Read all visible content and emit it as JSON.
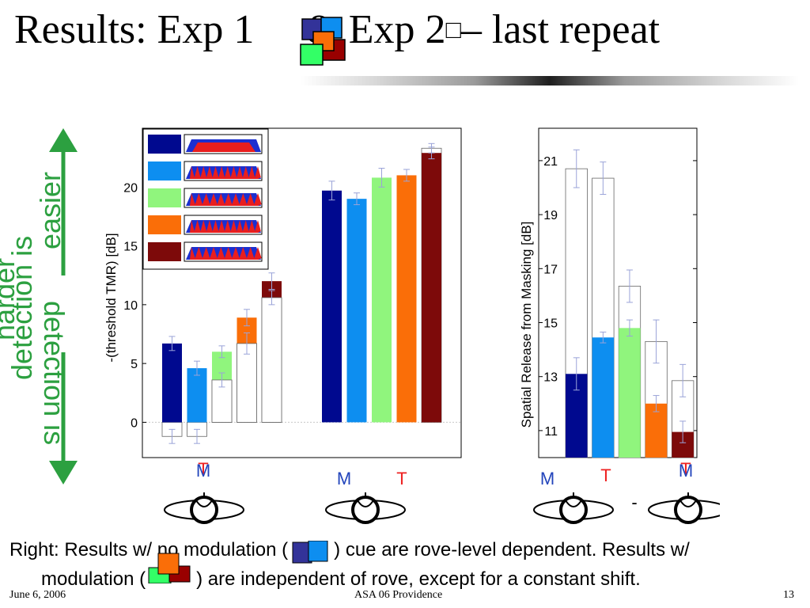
{
  "slide": {
    "title_part1": "Results: Exp 1",
    "title_part2": "& Exp 2",
    "title_glyph": "□",
    "title_part3": "– last repeat",
    "side_label_top": "detection is easier",
    "side_label_top_line1": "detection is",
    "side_label_top_line2": "easier",
    "side_label_bottom": "detection is harder",
    "side_label_bottom_line1": "detection is",
    "side_label_bottom_line2": "harder",
    "bottom_line1_a": "Right: Results w/ no modulation (",
    "bottom_line1_b": ") cue are rove-level dependent. Results w/",
    "bottom_line2_a": "modulation (",
    "bottom_line2_b": ") are independent of rove, except for a constant shift.",
    "footer_date": "June 6, 2006",
    "footer_center": "ASA 06 Providence",
    "footer_page": "13",
    "labels_M": "M",
    "labels_T": "T",
    "minus": "-",
    "colors": {
      "darkblue": "#00098f",
      "lightblue": "#0d8ef0",
      "lightgreen": "#90f57d",
      "orange": "#fa6e08",
      "darkred": "#7d0a0a",
      "red_label": "#ee2222",
      "blue_label": "#2244bb",
      "green_arrow": "#2ca040"
    }
  },
  "chart_data": [
    {
      "type": "bar",
      "ylabel": "-(threshold TMR) [dB]",
      "yticks": [
        0,
        5,
        10,
        15,
        20
      ],
      "ylim": [
        -3,
        25
      ],
      "legend_placement": "top-left",
      "groups": [
        {
          "label_M": "M",
          "label_T": "T",
          "bars": [
            {
              "color": "darkblue",
              "value": 6.7,
              "err": 0.6,
              "outline": -1.2,
              "outline_err": 0.6
            },
            {
              "color": "lightblue",
              "value": 4.6,
              "err": 0.6,
              "outline": -1.2,
              "outline_err": 0.6
            },
            {
              "color": "lightgreen",
              "value": 6.0,
              "err": 0.5,
              "outline": 3.6,
              "outline_err": 0.6
            },
            {
              "color": "orange",
              "value": 8.9,
              "err": 0.7,
              "outline": 6.7,
              "outline_err": 0.9
            },
            {
              "color": "darkred",
              "value": 12.0,
              "err": 0.7,
              "outline": 10.6,
              "outline_err": 0.6
            }
          ]
        },
        {
          "label_M": "M",
          "label_T": "T",
          "bars": [
            {
              "color": "darkblue",
              "value": 19.7,
              "err": 0.8
            },
            {
              "color": "lightblue",
              "value": 19.0,
              "err": 0.5
            },
            {
              "color": "lightgreen",
              "value": 20.8,
              "err": 0.8
            },
            {
              "color": "orange",
              "value": 21.0,
              "err": 0.5
            },
            {
              "color": "darkred",
              "value": 22.9,
              "err": 0.5,
              "outline": 23.3,
              "outline_err": 0.4
            }
          ]
        }
      ]
    },
    {
      "type": "bar",
      "ylabel": "Spatial Release from Masking [dB]",
      "yticks": [
        11,
        13,
        15,
        17,
        19,
        21
      ],
      "ylim": [
        10,
        22.2
      ],
      "bars": [
        {
          "color": "darkblue",
          "value": 13.1,
          "err": 0.6,
          "outline": 20.7,
          "outline_err": 0.7
        },
        {
          "color": "lightblue",
          "value": 14.45,
          "err": 0.2,
          "outline": 20.35,
          "outline_err": 0.6
        },
        {
          "color": "lightgreen",
          "value": 14.8,
          "err": 0.3,
          "outline": 16.35,
          "outline_err": 0.6
        },
        {
          "color": "orange",
          "value": 12.0,
          "err": 0.3,
          "outline": 14.3,
          "outline_err": 0.8
        },
        {
          "color": "darkred",
          "value": 10.95,
          "err": 0.4,
          "outline": 12.85,
          "outline_err": 0.6
        }
      ]
    }
  ]
}
